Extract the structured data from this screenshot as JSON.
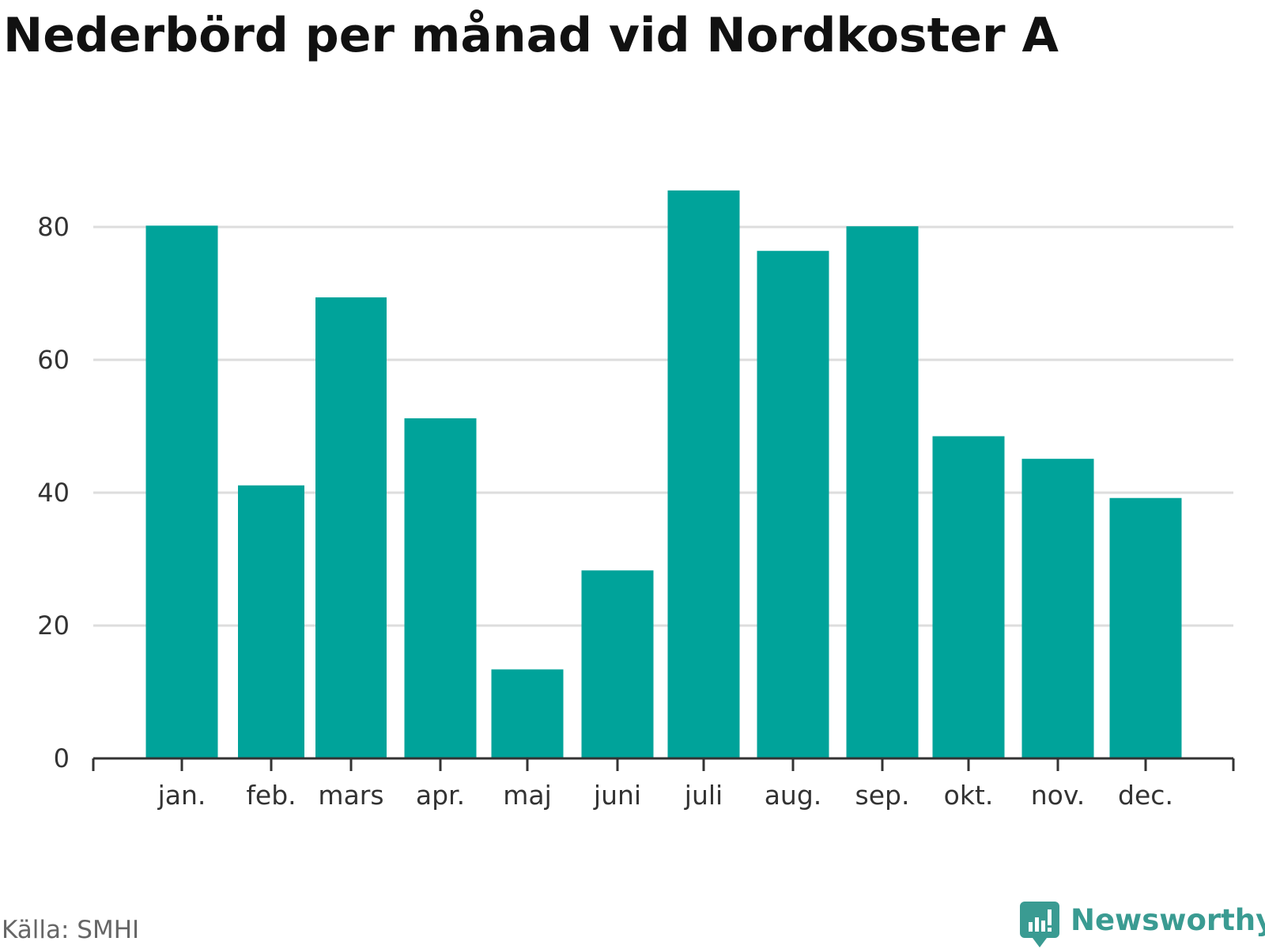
{
  "title": "Nederbörd per månad vid Nordkoster A",
  "source": "Källa: SMHI",
  "brand": {
    "name": "Newsworthy",
    "icon": "newsworthy-logo-icon"
  },
  "colors": {
    "bar": "#00a39a",
    "grid": "#dddddd",
    "axis": "#333333",
    "brand": "#3a9b92"
  },
  "chart_data": {
    "type": "bar",
    "title": "Nederbörd per månad vid Nordkoster A",
    "categories": [
      "jan.",
      "feb.",
      "mars",
      "apr.",
      "maj",
      "juni",
      "juli",
      "aug.",
      "sep.",
      "okt.",
      "nov.",
      "dec."
    ],
    "values": [
      80.2,
      41.1,
      69.4,
      51.2,
      13.4,
      28.3,
      85.5,
      76.4,
      80.1,
      48.5,
      45.1,
      39.2
    ],
    "yticks": [
      0,
      20,
      40,
      60,
      80
    ],
    "ylim": [
      0,
      88
    ],
    "xlabel": "",
    "ylabel": "",
    "grid": true,
    "legend": "none"
  }
}
